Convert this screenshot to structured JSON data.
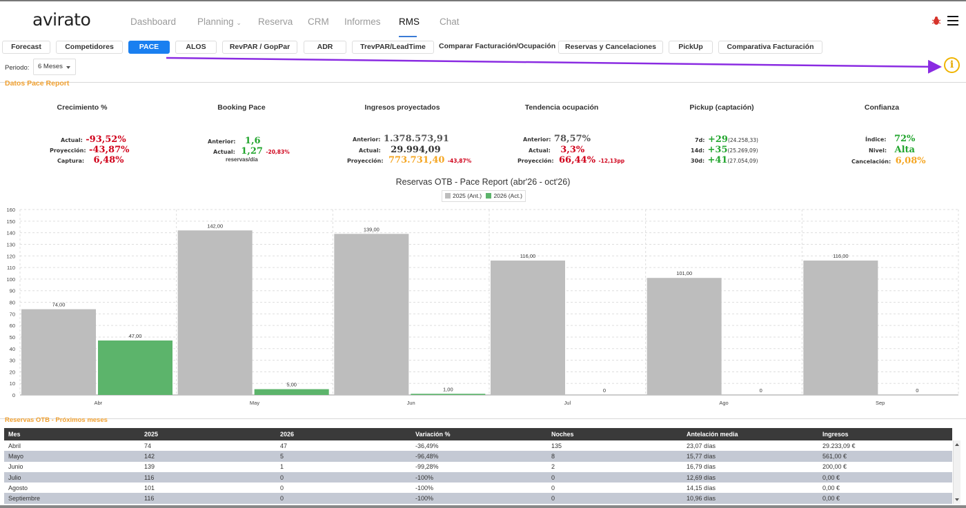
{
  "app": {
    "logo": "avirato"
  },
  "nav": [
    {
      "label": "Dashboard"
    },
    {
      "label": "Planning"
    },
    {
      "label": "Reserva"
    },
    {
      "label": "CRM"
    },
    {
      "label": "Informes"
    },
    {
      "label": "RMS"
    },
    {
      "label": "Chat"
    }
  ],
  "tabs": [
    {
      "label": "Forecast"
    },
    {
      "label": "Competidores"
    },
    {
      "label": "PACE"
    },
    {
      "label": "ALOS"
    },
    {
      "label": "RevPAR / GopPar"
    },
    {
      "label": "ADR"
    },
    {
      "label": "TrevPAR/LeadTime"
    },
    {
      "label": "Comparar Facturación/Ocupación"
    },
    {
      "label": "Reservas y  Cancelaciones"
    },
    {
      "label": "PickUp"
    },
    {
      "label": "Comparativa Facturación"
    }
  ],
  "periodo": {
    "label": "Periodo:",
    "value": "6 Meses"
  },
  "section_title": "Datos Pace Report",
  "kpis": {
    "crecimiento": {
      "title": "Crecimiento %",
      "actual_label": "Actual:",
      "actual": "-93,52%",
      "proyeccion_label": "Proyección:",
      "proyeccion": "-43,87%",
      "captura_label": "Captura:",
      "captura": "6,48%"
    },
    "booking": {
      "title": "Booking Pace",
      "anterior_label": "Anterior:",
      "anterior": "1,6",
      "actual_label": "Actual:",
      "actual": "1,27",
      "actual_diff": "-20,83%",
      "unit": "reservas/día"
    },
    "ingresos": {
      "title": "Ingresos proyectados",
      "anterior_label": "Anterior:",
      "anterior": "1.378.573,91",
      "actual_label": "Actual:",
      "actual": "29.994,09",
      "proyeccion_label": "Proyección:",
      "proyeccion": "773.731,40",
      "proyeccion_diff": "-43,87%"
    },
    "tendencia": {
      "title": "Tendencia ocupación",
      "anterior_label": "Anterior:",
      "anterior": "78,57%",
      "actual_label": "Actual:",
      "actual": "3,3%",
      "proyeccion_label": "Proyección:",
      "proyeccion": "66,44%",
      "proyeccion_diff": "-12,13pp"
    },
    "pickup": {
      "title": "Pickup (captación)",
      "d7_label": "7d:",
      "d7": "+29",
      "d7_note": "(24.258,33)",
      "d14_label": "14d:",
      "d14": "+35",
      "d14_note": "(25.269,09)",
      "d30_label": "30d:",
      "d30": "+41",
      "d30_note": "(27.054,09)"
    },
    "confianza": {
      "title": "Confianza",
      "indice_label": "Índice:",
      "indice": "72%",
      "nivel_label": "Nivel:",
      "nivel": "Alta",
      "cancel_label": "Cancelación:",
      "cancel": "6,08%"
    }
  },
  "chart_data": {
    "type": "bar",
    "title": "Reservas OTB - Pace Report (abr'26 - oct'26)",
    "categories": [
      "Abr",
      "May",
      "Jun",
      "Jul",
      "Ago",
      "Sep"
    ],
    "series": [
      {
        "name": "2025 (Ant.)",
        "color": "#bdbdbd",
        "values": [
          74,
          142,
          139,
          116,
          101,
          116
        ],
        "labels": [
          "74,00",
          "142,00",
          "139,00",
          "116,00",
          "101,00",
          "116,00"
        ]
      },
      {
        "name": "2026 (Act.)",
        "color": "#5cb46b",
        "values": [
          47,
          5,
          1,
          0,
          0,
          0
        ],
        "labels": [
          "47,00",
          "5,00",
          "1,00",
          "0",
          "0",
          "0"
        ]
      }
    ],
    "ylim": [
      0,
      160
    ],
    "yticks": [
      0,
      10,
      20,
      30,
      40,
      50,
      60,
      70,
      80,
      90,
      100,
      110,
      120,
      130,
      140,
      150,
      160
    ],
    "grid": true,
    "legend": "top-center"
  },
  "table": {
    "title": "Reservas OTB - Próximos meses",
    "headers": [
      "Mes",
      "2025",
      "2026",
      "Variación %",
      "Noches",
      "Antelación media",
      "Ingresos"
    ],
    "rows": [
      [
        "Abril",
        "74",
        "47",
        "-36,49%",
        "135",
        "23,07 días",
        "29.233,09 €"
      ],
      [
        "Mayo",
        "142",
        "5",
        "-96,48%",
        "8",
        "15,77 días",
        "561,00 €"
      ],
      [
        "Junio",
        "139",
        "1",
        "-99,28%",
        "2",
        "16,79 días",
        "200,00 €"
      ],
      [
        "Julio",
        "116",
        "0",
        "-100%",
        "0",
        "12,69 días",
        "0,00 €"
      ],
      [
        "Agosto",
        "101",
        "0",
        "-100%",
        "0",
        "14,15 días",
        "0,00 €"
      ],
      [
        "Septiembre",
        "116",
        "0",
        "-100%",
        "0",
        "10,96 días",
        "0,00 €"
      ]
    ]
  }
}
